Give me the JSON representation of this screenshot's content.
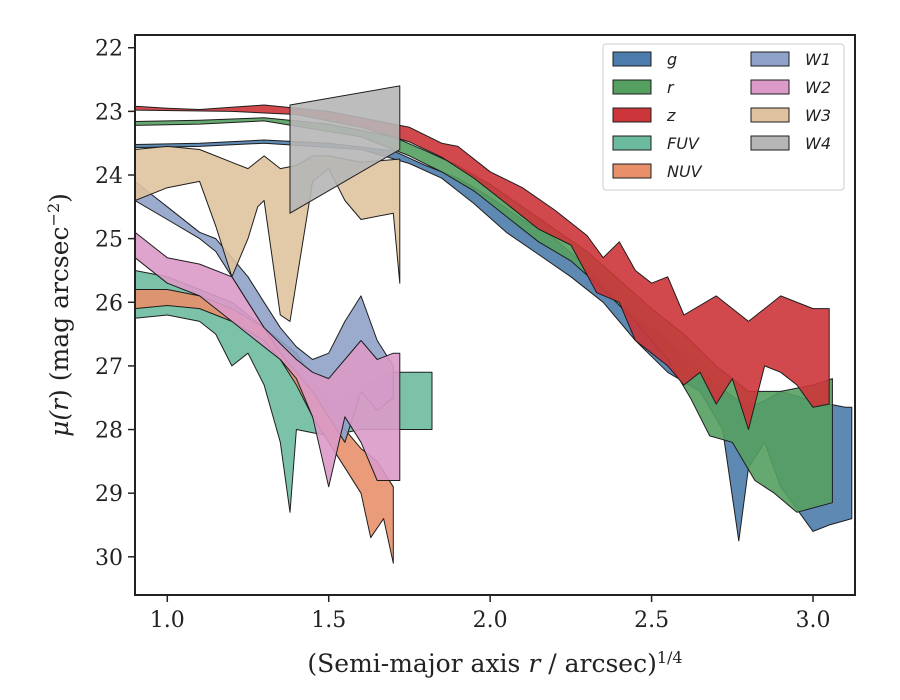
{
  "chart_data": {
    "type": "area",
    "xlabel": {
      "main": "(Semi-major axis ",
      "var": "r",
      "mid": " / arcsec)",
      "sup": "1/4"
    },
    "ylabel": {
      "sym": "μ(",
      "var": "r",
      "end": ") (mag arcsec",
      "sup": "−2",
      "close": ")"
    },
    "xlim": [
      0.9,
      3.13
    ],
    "ylim": [
      30.6,
      21.8
    ],
    "y_inverted": true,
    "x_ticks": [
      1.0,
      1.5,
      2.0,
      2.5,
      3.0
    ],
    "x_tick_labels": [
      "1.0",
      "1.5",
      "2.0",
      "2.5",
      "3.0"
    ],
    "y_ticks": [
      22,
      23,
      24,
      25,
      26,
      27,
      28,
      29,
      30
    ],
    "y_tick_labels": [
      "22",
      "23",
      "24",
      "25",
      "26",
      "27",
      "28",
      "29",
      "30"
    ],
    "legend": {
      "placement": "top-right",
      "columns": 2
    },
    "series": [
      {
        "name": "g",
        "color": "#4c7cab",
        "upper": [
          [
            0.9,
            23.52
          ],
          [
            1.1,
            23.5
          ],
          [
            1.3,
            23.45
          ],
          [
            1.5,
            23.5
          ],
          [
            1.7,
            23.62
          ],
          [
            1.8,
            23.85
          ],
          [
            1.9,
            24.05
          ],
          [
            2.0,
            24.35
          ],
          [
            2.1,
            24.7
          ],
          [
            2.2,
            25.0
          ],
          [
            2.3,
            25.45
          ],
          [
            2.4,
            26.0
          ],
          [
            2.5,
            26.4
          ],
          [
            2.6,
            26.8
          ],
          [
            2.7,
            27.3
          ],
          [
            2.8,
            27.65
          ],
          [
            2.85,
            27.55
          ],
          [
            2.9,
            27.4
          ],
          [
            3.0,
            27.55
          ],
          [
            3.1,
            27.65
          ],
          [
            3.12,
            27.65
          ]
        ],
        "lower": [
          [
            3.12,
            29.4
          ],
          [
            3.05,
            29.5
          ],
          [
            3.0,
            29.6
          ],
          [
            2.9,
            28.9
          ],
          [
            2.85,
            28.2
          ],
          [
            2.8,
            28.6
          ],
          [
            2.77,
            29.75
          ],
          [
            2.72,
            28.0
          ],
          [
            2.65,
            27.4
          ],
          [
            2.55,
            27.1
          ],
          [
            2.45,
            26.6
          ],
          [
            2.35,
            26.0
          ],
          [
            2.25,
            25.6
          ],
          [
            2.15,
            25.25
          ],
          [
            2.05,
            24.9
          ],
          [
            1.95,
            24.45
          ],
          [
            1.85,
            24.05
          ],
          [
            1.75,
            23.82
          ],
          [
            1.6,
            23.6
          ],
          [
            1.3,
            23.5
          ],
          [
            1.1,
            23.55
          ],
          [
            0.9,
            23.57
          ]
        ]
      },
      {
        "name": "r",
        "color": "#55a060",
        "upper": [
          [
            0.9,
            23.16
          ],
          [
            1.1,
            23.14
          ],
          [
            1.3,
            23.1
          ],
          [
            1.5,
            23.2
          ],
          [
            1.7,
            23.4
          ],
          [
            1.8,
            23.62
          ],
          [
            1.9,
            23.85
          ],
          [
            2.0,
            24.15
          ],
          [
            2.1,
            24.5
          ],
          [
            2.2,
            24.85
          ],
          [
            2.3,
            25.2
          ],
          [
            2.4,
            25.65
          ],
          [
            2.5,
            26.1
          ],
          [
            2.6,
            26.5
          ],
          [
            2.7,
            27.0
          ],
          [
            2.8,
            27.4
          ],
          [
            2.9,
            27.4
          ],
          [
            3.0,
            27.3
          ],
          [
            3.06,
            27.2
          ]
        ],
        "lower": [
          [
            3.06,
            29.15
          ],
          [
            2.95,
            29.3
          ],
          [
            2.88,
            29.0
          ],
          [
            2.82,
            28.8
          ],
          [
            2.75,
            28.2
          ],
          [
            2.68,
            28.1
          ],
          [
            2.62,
            27.5
          ],
          [
            2.55,
            26.9
          ],
          [
            2.45,
            26.3
          ],
          [
            2.35,
            25.8
          ],
          [
            2.25,
            25.35
          ],
          [
            2.15,
            25.05
          ],
          [
            2.05,
            24.65
          ],
          [
            1.95,
            24.25
          ],
          [
            1.85,
            23.95
          ],
          [
            1.75,
            23.7
          ],
          [
            1.6,
            23.4
          ],
          [
            1.3,
            23.15
          ],
          [
            1.1,
            23.2
          ],
          [
            0.9,
            23.22
          ]
        ]
      },
      {
        "name": "z",
        "color": "#cc3539",
        "upper": [
          [
            0.9,
            22.92
          ],
          [
            1.0,
            22.95
          ],
          [
            1.1,
            22.97
          ],
          [
            1.3,
            22.9
          ],
          [
            1.5,
            23.0
          ],
          [
            1.7,
            23.2
          ],
          [
            1.75,
            23.25
          ],
          [
            1.85,
            23.5
          ],
          [
            1.9,
            23.55
          ],
          [
            2.0,
            23.95
          ],
          [
            2.1,
            24.2
          ],
          [
            2.2,
            24.55
          ],
          [
            2.3,
            24.95
          ],
          [
            2.35,
            25.3
          ],
          [
            2.4,
            25.05
          ],
          [
            2.45,
            25.5
          ],
          [
            2.5,
            25.7
          ],
          [
            2.55,
            25.6
          ],
          [
            2.6,
            26.2
          ],
          [
            2.7,
            25.9
          ],
          [
            2.8,
            26.3
          ],
          [
            2.9,
            25.9
          ],
          [
            3.0,
            26.1
          ],
          [
            3.05,
            26.1
          ]
        ],
        "lower": [
          [
            3.05,
            27.6
          ],
          [
            3.0,
            27.65
          ],
          [
            2.95,
            27.3
          ],
          [
            2.9,
            27.1
          ],
          [
            2.85,
            27.0
          ],
          [
            2.8,
            28.0
          ],
          [
            2.75,
            27.2
          ],
          [
            2.7,
            27.6
          ],
          [
            2.65,
            27.1
          ],
          [
            2.6,
            27.3
          ],
          [
            2.55,
            27.0
          ],
          [
            2.5,
            26.8
          ],
          [
            2.45,
            26.6
          ],
          [
            2.4,
            26.0
          ],
          [
            2.33,
            25.85
          ],
          [
            2.25,
            25.1
          ],
          [
            2.15,
            24.85
          ],
          [
            2.05,
            24.45
          ],
          [
            1.95,
            24.05
          ],
          [
            1.85,
            23.72
          ],
          [
            1.75,
            23.48
          ],
          [
            1.6,
            23.25
          ],
          [
            1.4,
            23.05
          ],
          [
            1.2,
            23.0
          ],
          [
            0.9,
            22.98
          ]
        ]
      },
      {
        "name": "FUV",
        "color": "#6dbb9f",
        "upper": [
          [
            0.9,
            25.5
          ],
          [
            1.0,
            25.6
          ],
          [
            1.1,
            25.8
          ],
          [
            1.2,
            26.0
          ],
          [
            1.3,
            26.4
          ],
          [
            1.35,
            26.8
          ],
          [
            1.4,
            27.2
          ],
          [
            1.45,
            27.4
          ],
          [
            1.5,
            27.6
          ],
          [
            1.55,
            27.5
          ],
          [
            1.6,
            27.3
          ],
          [
            1.7,
            27.1
          ],
          [
            1.82,
            27.1
          ]
        ],
        "lower": [
          [
            1.82,
            28.0
          ],
          [
            1.7,
            28.0
          ],
          [
            1.6,
            28.0
          ],
          [
            1.55,
            28.05
          ],
          [
            1.5,
            28.1
          ],
          [
            1.45,
            28.05
          ],
          [
            1.4,
            28.0
          ],
          [
            1.38,
            29.3
          ],
          [
            1.35,
            28.2
          ],
          [
            1.3,
            27.3
          ],
          [
            1.25,
            26.8
          ],
          [
            1.2,
            27.0
          ],
          [
            1.15,
            26.5
          ],
          [
            1.1,
            26.3
          ],
          [
            1.0,
            26.2
          ],
          [
            0.9,
            26.25
          ]
        ]
      },
      {
        "name": "NUV",
        "color": "#e8906a",
        "upper": [
          [
            0.9,
            25.8
          ],
          [
            1.0,
            25.8
          ],
          [
            1.1,
            25.9
          ],
          [
            1.2,
            26.1
          ],
          [
            1.3,
            26.4
          ],
          [
            1.4,
            26.8
          ],
          [
            1.45,
            27.2
          ],
          [
            1.5,
            27.6
          ],
          [
            1.55,
            28.0
          ],
          [
            1.6,
            28.3
          ],
          [
            1.65,
            28.5
          ],
          [
            1.7,
            28.9
          ]
        ],
        "lower": [
          [
            1.7,
            30.1
          ],
          [
            1.67,
            29.4
          ],
          [
            1.63,
            29.7
          ],
          [
            1.6,
            29.0
          ],
          [
            1.55,
            28.6
          ],
          [
            1.5,
            28.2
          ],
          [
            1.45,
            27.8
          ],
          [
            1.4,
            27.3
          ],
          [
            1.35,
            26.9
          ],
          [
            1.3,
            26.6
          ],
          [
            1.2,
            26.3
          ],
          [
            1.1,
            26.1
          ],
          [
            1.0,
            26.05
          ],
          [
            0.9,
            26.1
          ]
        ]
      },
      {
        "name": "W1",
        "color": "#8fa2c9",
        "upper": [
          [
            0.9,
            24.1
          ],
          [
            0.95,
            24.3
          ],
          [
            1.0,
            24.5
          ],
          [
            1.1,
            24.9
          ],
          [
            1.15,
            25.0
          ],
          [
            1.2,
            25.3
          ],
          [
            1.25,
            25.6
          ],
          [
            1.3,
            26.0
          ],
          [
            1.35,
            26.4
          ],
          [
            1.4,
            26.7
          ],
          [
            1.45,
            26.9
          ],
          [
            1.5,
            26.8
          ],
          [
            1.55,
            26.3
          ],
          [
            1.6,
            25.9
          ],
          [
            1.65,
            26.6
          ],
          [
            1.7,
            27.0
          ]
        ],
        "lower": [
          [
            1.7,
            27.5
          ],
          [
            1.65,
            27.7
          ],
          [
            1.6,
            27.4
          ],
          [
            1.55,
            28.2
          ],
          [
            1.5,
            27.8
          ],
          [
            1.45,
            27.4
          ],
          [
            1.4,
            27.1
          ],
          [
            1.35,
            26.8
          ],
          [
            1.3,
            26.4
          ],
          [
            1.25,
            26.0
          ],
          [
            1.2,
            25.6
          ],
          [
            1.15,
            25.2
          ],
          [
            1.1,
            25.0
          ],
          [
            1.0,
            24.7
          ],
          [
            0.9,
            24.4
          ]
        ]
      },
      {
        "name": "W2",
        "color": "#dc9ac8",
        "upper": [
          [
            0.9,
            24.9
          ],
          [
            1.0,
            25.3
          ],
          [
            1.1,
            25.4
          ],
          [
            1.2,
            25.6
          ],
          [
            1.25,
            26.0
          ],
          [
            1.3,
            26.4
          ],
          [
            1.4,
            26.9
          ],
          [
            1.45,
            27.1
          ],
          [
            1.5,
            27.2
          ],
          [
            1.55,
            26.9
          ],
          [
            1.6,
            26.6
          ],
          [
            1.65,
            26.9
          ],
          [
            1.7,
            26.8
          ],
          [
            1.72,
            26.8
          ]
        ],
        "lower": [
          [
            1.72,
            28.8
          ],
          [
            1.65,
            28.8
          ],
          [
            1.6,
            28.2
          ],
          [
            1.55,
            27.8
          ],
          [
            1.5,
            28.9
          ],
          [
            1.45,
            27.8
          ],
          [
            1.4,
            27.2
          ],
          [
            1.35,
            26.9
          ],
          [
            1.3,
            26.7
          ],
          [
            1.25,
            26.5
          ],
          [
            1.2,
            26.3
          ],
          [
            1.1,
            25.9
          ],
          [
            1.0,
            25.7
          ],
          [
            0.9,
            25.3
          ]
        ]
      },
      {
        "name": "W3",
        "color": "#dfc39f",
        "upper": [
          [
            0.9,
            23.6
          ],
          [
            1.0,
            23.55
          ],
          [
            1.1,
            23.6
          ],
          [
            1.15,
            23.7
          ],
          [
            1.2,
            23.8
          ],
          [
            1.25,
            23.9
          ],
          [
            1.3,
            23.7
          ],
          [
            1.35,
            23.9
          ],
          [
            1.4,
            23.85
          ],
          [
            1.45,
            23.7
          ],
          [
            1.5,
            23.7
          ],
          [
            1.6,
            23.8
          ],
          [
            1.72,
            23.75
          ]
        ],
        "lower": [
          [
            1.72,
            25.7
          ],
          [
            1.7,
            24.6
          ],
          [
            1.6,
            24.7
          ],
          [
            1.55,
            24.4
          ],
          [
            1.5,
            23.9
          ],
          [
            1.45,
            24.1
          ],
          [
            1.38,
            26.3
          ],
          [
            1.35,
            26.2
          ],
          [
            1.3,
            24.4
          ],
          [
            1.28,
            24.5
          ],
          [
            1.25,
            25.0
          ],
          [
            1.2,
            25.6
          ],
          [
            1.15,
            24.8
          ],
          [
            1.1,
            24.1
          ],
          [
            1.0,
            24.2
          ],
          [
            0.9,
            24.4
          ]
        ]
      },
      {
        "name": "W4",
        "color": "#b6b6b6",
        "upper": [
          [
            1.38,
            22.9
          ],
          [
            1.72,
            22.6
          ]
        ],
        "lower": [
          [
            1.72,
            23.6
          ],
          [
            1.38,
            24.6
          ]
        ]
      }
    ]
  }
}
